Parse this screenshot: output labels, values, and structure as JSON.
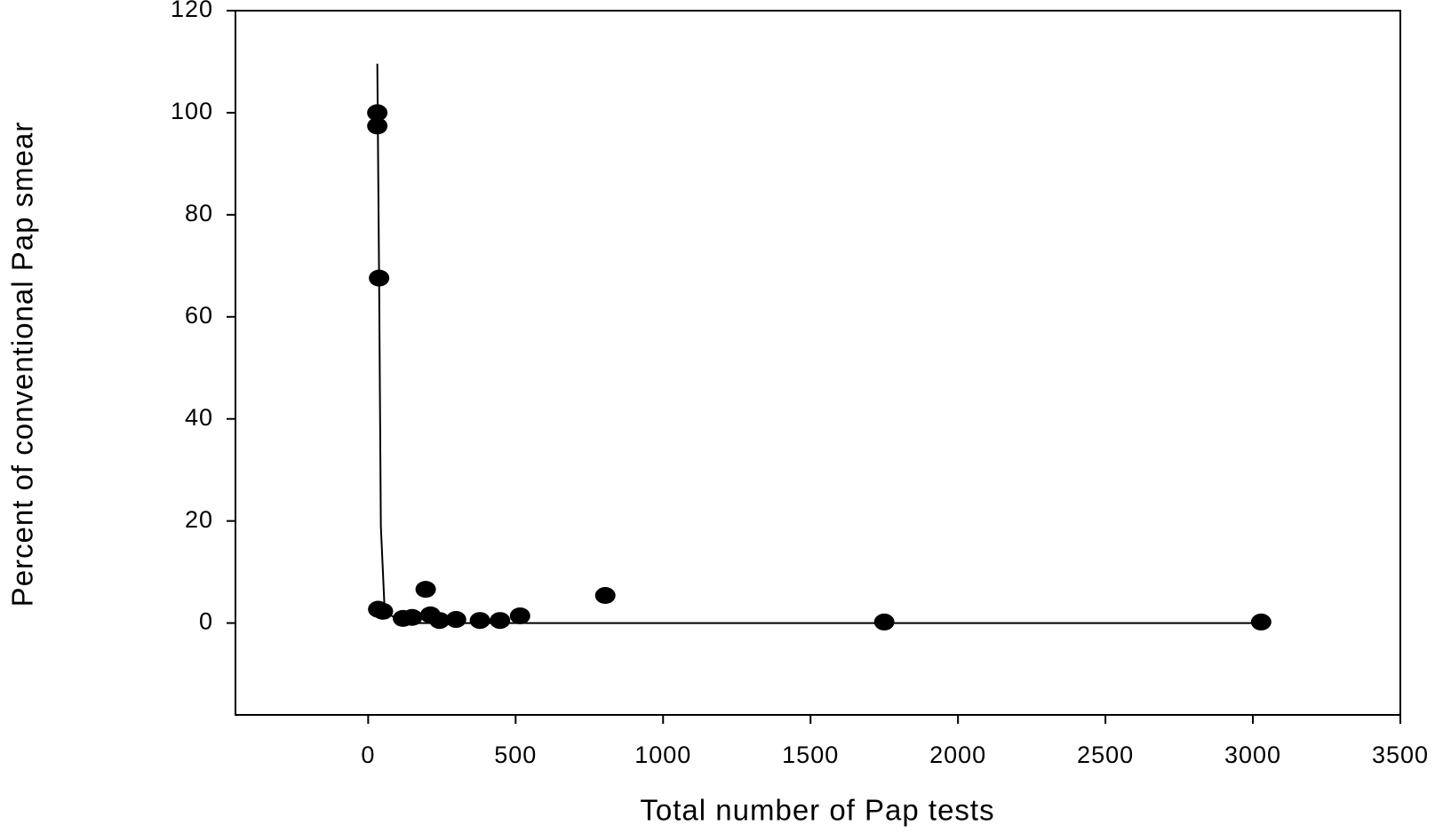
{
  "chart_data": {
    "type": "scatter",
    "x_label": "Total number of Pap tests",
    "y_label": "Percent of conventional Pap smear",
    "points": {
      "color": "#000000",
      "x": [
        31,
        31,
        37,
        34,
        50,
        118,
        149,
        195,
        211,
        242,
        298,
        379,
        447,
        515,
        804,
        1750,
        3028
      ],
      "y": [
        100,
        97.4,
        67.6,
        2.7,
        2.3,
        0.9,
        1.1,
        6.6,
        1.6,
        0.5,
        0.7,
        0.5,
        0.5,
        1.4,
        5.4,
        0.2,
        0.2
      ]
    },
    "fit": {
      "color": "#000000",
      "x": [
        31,
        37,
        43,
        56,
        118,
        3028
      ],
      "y": [
        109.6,
        68,
        19,
        2.3,
        0,
        0
      ]
    },
    "xlim": [
      -450,
      3500
    ],
    "ylim": [
      -18,
      120
    ],
    "xticks": [
      0,
      500,
      1000,
      1500,
      2000,
      2500,
      3000,
      3500
    ],
    "yticks": [
      0,
      20,
      40,
      60,
      80,
      100,
      120
    ],
    "grid": false
  }
}
